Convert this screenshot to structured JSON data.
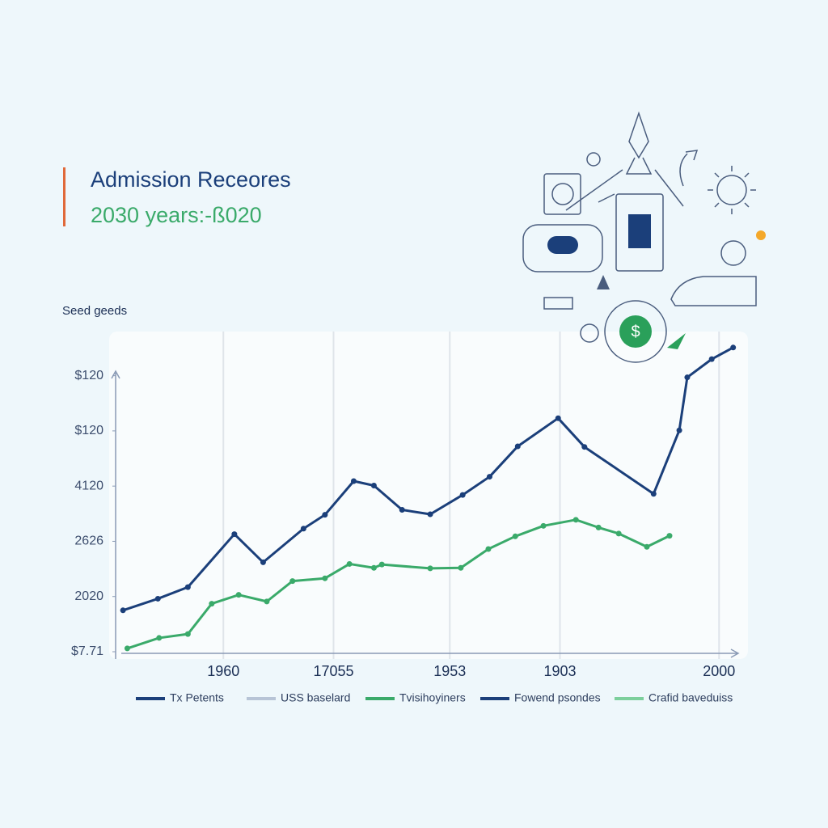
{
  "chart_data": {
    "type": "line",
    "title": "Admission Receores",
    "subtitle": "2030 years:-ß020",
    "y_label": "Seed geeds",
    "badge": "$",
    "xlim": [
      -2,
      100
    ],
    "xticks": [
      {
        "value": 16,
        "label": "1960"
      },
      {
        "value": 34,
        "label": "17055"
      },
      {
        "value": 53,
        "label": "1953"
      },
      {
        "value": 71,
        "label": "1903"
      },
      {
        "value": 97,
        "label": "2000"
      }
    ],
    "ylim": [
      0,
      5.8
    ],
    "yticks": [
      {
        "value": 0,
        "label": "$7.71"
      },
      {
        "value": 1,
        "label": "2020"
      },
      {
        "value": 2,
        "label": "2626"
      },
      {
        "value": 3,
        "label": "4120"
      },
      {
        "value": 4,
        "label": "$120"
      },
      {
        "value": 5,
        "label": "$120"
      }
    ],
    "grid": true,
    "series": [
      {
        "color": "#1b3f7a",
        "x": [
          -0.4,
          5.3,
          10.2,
          17.8,
          22.5,
          29.1,
          32.6,
          37.3,
          40.6,
          45.2,
          49.8,
          55.1,
          59.5,
          64.1,
          70.7,
          75.0,
          86.3,
          90.5,
          91.8,
          95.8,
          99.3
        ],
        "values": [
          0.75,
          0.96,
          1.17,
          2.13,
          1.62,
          2.23,
          2.48,
          3.09,
          3.01,
          2.57,
          2.49,
          2.84,
          3.17,
          3.72,
          4.23,
          3.71,
          2.86,
          4.01,
          4.97,
          5.3,
          5.51
        ]
      },
      {
        "color": "#3aaa6a",
        "x": [
          0.3,
          5.5,
          10.2,
          14.1,
          18.5,
          23.1,
          27.3,
          32.6,
          36.6,
          40.6,
          41.9,
          49.8,
          54.8,
          59.3,
          63.7,
          68.3,
          73.6,
          77.3,
          80.6,
          85.2,
          88.9
        ],
        "values": [
          0.06,
          0.25,
          0.32,
          0.87,
          1.03,
          0.91,
          1.28,
          1.33,
          1.59,
          1.52,
          1.58,
          1.51,
          1.52,
          1.86,
          2.09,
          2.28,
          2.39,
          2.25,
          2.14,
          1.9,
          2.1
        ]
      }
    ],
    "legend": [
      {
        "label": "Tx Petents",
        "color": "#1b3f7a"
      },
      {
        "label": "USS baselard",
        "color": "#b7c4d6"
      },
      {
        "label": "Tvisihoyiners",
        "color": "#3aaa6a"
      },
      {
        "label": "Fowend psondes",
        "color": "#1b3f7a"
      },
      {
        "label": "Crafid baveduiss",
        "color": "#7ccf9c"
      }
    ]
  }
}
